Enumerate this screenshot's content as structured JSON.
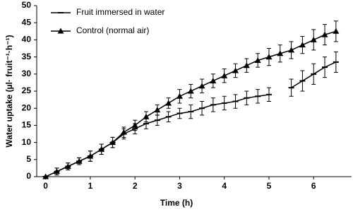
{
  "chart_data": {
    "type": "line",
    "xlabel": "Time (h)",
    "ylabel": "Water uptake (µl· fruit⁻¹·h⁻¹)",
    "x": [
      0,
      0.25,
      0.5,
      0.75,
      1,
      1.25,
      1.5,
      1.75,
      2,
      2.25,
      2.5,
      2.75,
      3,
      3.25,
      3.5,
      3.75,
      4,
      4.25,
      4.5,
      4.75,
      5,
      5.25,
      5.5,
      5.75,
      6,
      6.25,
      6.5
    ],
    "series": [
      {
        "name": "Fruit immersed in water",
        "color": "#000000",
        "marker": "dash",
        "values": [
          0,
          1.5,
          3,
          4.5,
          6,
          8,
          10,
          12.5,
          14,
          15.5,
          16.5,
          17.5,
          18.5,
          19,
          20,
          21,
          21.5,
          22,
          23,
          23.5,
          24,
          null,
          26,
          28,
          30,
          32,
          33.5
        ],
        "errors": [
          0,
          1,
          1,
          1,
          1.5,
          1.5,
          1.5,
          1.5,
          1.5,
          1.5,
          1.5,
          1.5,
          1.5,
          2,
          2,
          2,
          2,
          2,
          2,
          2,
          2,
          null,
          2.5,
          3,
          3,
          3,
          3
        ]
      },
      {
        "name": "Control (normal air)",
        "color": "#000000",
        "marker": "triangle",
        "values": [
          0,
          1.5,
          3,
          4.5,
          6,
          8,
          10,
          13,
          15,
          17.5,
          19.5,
          21.5,
          23.5,
          25,
          26.5,
          28,
          29.5,
          31,
          32.5,
          34,
          35,
          36,
          37,
          38.5,
          40,
          41.5,
          42.5
        ],
        "errors": [
          0,
          1,
          1,
          1,
          1.5,
          1.5,
          1.5,
          1.5,
          1.5,
          1.5,
          1.5,
          1.5,
          2,
          2,
          2,
          2,
          2,
          2,
          2,
          2,
          2.5,
          2.5,
          2.5,
          2.5,
          3,
          3,
          3
        ]
      }
    ],
    "xlim": [
      -0.2,
      6.85
    ],
    "xticks": [
      0,
      1,
      2,
      3,
      4,
      5,
      6
    ],
    "ylim": [
      0,
      50
    ],
    "yticks": [
      0,
      5,
      10,
      15,
      20,
      25,
      30,
      35,
      40,
      45,
      50
    ],
    "grid": false,
    "legend": "upper left"
  }
}
